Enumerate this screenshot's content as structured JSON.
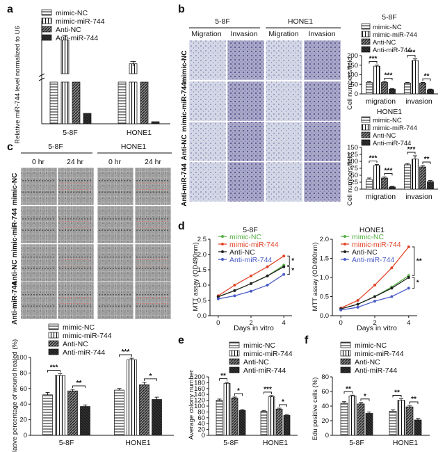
{
  "panel_labels": [
    "a",
    "b",
    "c",
    "d",
    "e",
    "f"
  ],
  "colors": {
    "mimic_nc": "#ffffff",
    "mimic_744": "#ffffff",
    "anti_nc": "#555555",
    "anti_744": "#1a1a1a",
    "line_green": "#55b044",
    "line_red": "#e1452a",
    "line_black": "#222222",
    "line_blue": "#4a5cc7",
    "micro_blue": "#b9c4dc",
    "micro_gray": "#c9c9c9"
  },
  "legend": [
    "mimic-NC",
    "mimic-miR-744",
    "Anti-NC",
    "Anti-miR-744"
  ],
  "legend_e": [
    "mimic-NC",
    "mimic-miR-744",
    "Anti-NC",
    "Anti-miR-744"
  ],
  "panel_b": {
    "groups": [
      "5-8F",
      "HONE1"
    ],
    "cols": [
      "Migration",
      "Invasion",
      "Migration",
      "Invasion"
    ],
    "rows": [
      "mimic-NC",
      "mimic-miR-744",
      "Anti-NC",
      "Anti-miR-744"
    ]
  },
  "panel_c": {
    "groups": [
      "5-8F",
      "HONE1"
    ],
    "cols": [
      "0 hr",
      "24 hr",
      "0 hr",
      "24 hr"
    ],
    "rows": [
      "mimic-NC",
      "mimic-miR-744",
      "Anti-NC",
      "Anti-miR-744"
    ]
  },
  "chart_data": [
    {
      "id": "a",
      "type": "bar",
      "ylabel": "Relative miR-744 level normalized to U6",
      "categories": [
        "5-8F",
        "HONE1"
      ],
      "series": [
        {
          "name": "mimic-NC",
          "values": [
            1.0,
            1.0
          ]
        },
        {
          "name": "mimic-miR-744",
          "values": [
            420,
            265
          ]
        },
        {
          "name": "Anti-NC",
          "values": [
            1.0,
            1.0
          ]
        },
        {
          "name": "Anti-miR-744",
          "values": [
            0.25,
            0.05
          ]
        }
      ],
      "errors": [
        [
          0,
          0
        ],
        [
          30,
          15
        ],
        [
          0,
          0
        ],
        [
          0,
          0
        ]
      ],
      "ylim": "broken"
    },
    {
      "id": "b1",
      "type": "bar",
      "title": "5-8F",
      "ylabel": "Cell numbers/field",
      "categories": [
        "migration",
        "invasion"
      ],
      "ylim": [
        0,
        200
      ],
      "yticks": [
        0,
        50,
        100,
        150,
        200
      ],
      "series": [
        {
          "name": "mimic-NC",
          "values": [
            60,
            57
          ]
        },
        {
          "name": "mimic-miR-744",
          "values": [
            145,
            175
          ]
        },
        {
          "name": "Anti-NC",
          "values": [
            60,
            57
          ]
        },
        {
          "name": "Anti-miR-744",
          "values": [
            25,
            22
          ]
        }
      ],
      "errors": [
        [
          4,
          3
        ],
        [
          6,
          8
        ],
        [
          4,
          3
        ],
        [
          3,
          3
        ]
      ],
      "sig": [
        {
          "cat": 0,
          "pair": [
            0,
            1
          ],
          "text": "***"
        },
        {
          "cat": 0,
          "pair": [
            2,
            3
          ],
          "text": "***"
        },
        {
          "cat": 1,
          "pair": [
            0,
            1
          ],
          "text": "***"
        },
        {
          "cat": 1,
          "pair": [
            2,
            3
          ],
          "text": "**"
        }
      ]
    },
    {
      "id": "b2",
      "type": "bar",
      "title": "HONE1",
      "ylabel": "Cell numbers/field",
      "categories": [
        "migration",
        "invasion"
      ],
      "ylim": [
        0,
        150
      ],
      "yticks": [
        0,
        25,
        50,
        75,
        100,
        125,
        150
      ],
      "series": [
        {
          "name": "mimic-NC",
          "values": [
            35,
            88
          ]
        },
        {
          "name": "mimic-miR-744",
          "values": [
            85,
            108
          ]
        },
        {
          "name": "Anti-NC",
          "values": [
            40,
            80
          ]
        },
        {
          "name": "Anti-miR-744",
          "values": [
            8,
            27
          ]
        }
      ],
      "errors": [
        [
          5,
          4
        ],
        [
          4,
          12
        ],
        [
          4,
          5
        ],
        [
          2,
          4
        ]
      ],
      "sig": [
        {
          "cat": 0,
          "pair": [
            0,
            1
          ],
          "text": "***"
        },
        {
          "cat": 0,
          "pair": [
            2,
            3
          ],
          "text": "***"
        },
        {
          "cat": 1,
          "pair": [
            0,
            1
          ],
          "text": "***"
        },
        {
          "cat": 1,
          "pair": [
            2,
            3
          ],
          "text": "**"
        }
      ]
    },
    {
      "id": "c",
      "type": "bar",
      "ylabel": "Relative percentage of wound healed (%)",
      "categories": [
        "5-8F",
        "HONE1"
      ],
      "ylim": [
        0,
        100
      ],
      "yticks": [
        0,
        20,
        40,
        60,
        80,
        100
      ],
      "series": [
        {
          "name": "mimic-NC",
          "values": [
            52,
            58
          ]
        },
        {
          "name": "mimic-miR-744",
          "values": [
            77,
            97
          ]
        },
        {
          "name": "Anti-NC",
          "values": [
            57,
            65
          ]
        },
        {
          "name": "Anti-miR-744",
          "values": [
            37,
            46
          ]
        }
      ],
      "errors": [
        [
          3,
          2
        ],
        [
          2,
          2
        ],
        [
          2,
          3
        ],
        [
          2,
          3
        ]
      ],
      "sig": [
        {
          "cat": 0,
          "pair": [
            0,
            1
          ],
          "text": "***"
        },
        {
          "cat": 0,
          "pair": [
            2,
            3
          ],
          "text": "**"
        },
        {
          "cat": 1,
          "pair": [
            0,
            1
          ],
          "text": "***"
        },
        {
          "cat": 1,
          "pair": [
            2,
            3
          ],
          "text": "*"
        }
      ]
    },
    {
      "id": "d1",
      "type": "line",
      "title": "5-8F",
      "xlabel": "Days in vitro",
      "ylabel": "MTT assay (OD490nm)",
      "xlim": [
        -0.5,
        4.5
      ],
      "xticks": [
        0,
        2,
        4
      ],
      "ylim": [
        0,
        2.5
      ],
      "yticks": [
        0,
        0.5,
        1.0,
        1.5,
        2.0,
        2.5
      ],
      "x": [
        0,
        1,
        2,
        3,
        4
      ],
      "series": [
        {
          "name": "mimic-NC",
          "color": "#55b044",
          "values": [
            0.62,
            0.82,
            1.05,
            1.3,
            1.65
          ]
        },
        {
          "name": "mimic-miR-744",
          "color": "#e1452a",
          "values": [
            0.65,
            1.0,
            1.3,
            1.6,
            1.95
          ]
        },
        {
          "name": "Anti-NC",
          "color": "#222222",
          "values": [
            0.62,
            0.82,
            1.05,
            1.3,
            1.6
          ]
        },
        {
          "name": "Anti-miR-744",
          "color": "#4a5cc7",
          "values": [
            0.55,
            0.65,
            0.8,
            1.0,
            1.35
          ]
        }
      ],
      "sig": [
        "*",
        "*"
      ]
    },
    {
      "id": "d2",
      "type": "line",
      "title": "HONE1",
      "xlabel": "Days in vitro",
      "ylabel": "MTT assay (OD490nm)",
      "xlim": [
        -0.5,
        4.5
      ],
      "xticks": [
        0,
        2,
        4
      ],
      "ylim": [
        0,
        2.0
      ],
      "yticks": [
        0.0,
        0.5,
        1.0,
        1.5,
        2.0
      ],
      "x": [
        0,
        1,
        2,
        3,
        4
      ],
      "series": [
        {
          "name": "mimic-NC",
          "color": "#55b044",
          "values": [
            0.18,
            0.3,
            0.5,
            0.75,
            1.05
          ]
        },
        {
          "name": "mimic-miR-744",
          "color": "#e1452a",
          "values": [
            0.2,
            0.4,
            0.8,
            1.25,
            1.8
          ]
        },
        {
          "name": "Anti-NC",
          "color": "#222222",
          "values": [
            0.18,
            0.3,
            0.5,
            0.72,
            1.0
          ]
        },
        {
          "name": "Anti-miR-744",
          "color": "#4a5cc7",
          "values": [
            0.15,
            0.22,
            0.38,
            0.5,
            0.72
          ]
        }
      ],
      "sig": [
        "**",
        "*"
      ]
    },
    {
      "id": "e",
      "type": "bar",
      "ylabel": "Average colony number",
      "categories": [
        "5-8F",
        "HONE1"
      ],
      "ylim": [
        0,
        200
      ],
      "yticks": [
        0,
        20,
        40,
        60,
        80,
        100,
        120,
        140,
        160,
        180,
        200
      ],
      "series": [
        {
          "name": "mimic-NC",
          "values": [
            120,
            82
          ]
        },
        {
          "name": "mimic-miR-744",
          "values": [
            178,
            132
          ]
        },
        {
          "name": "Anti-NC",
          "values": [
            128,
            90
          ]
        },
        {
          "name": "Anti-miR-744",
          "values": [
            85,
            68
          ]
        }
      ],
      "errors": [
        [
          4,
          3
        ],
        [
          4,
          4
        ],
        [
          3,
          3
        ],
        [
          3,
          3
        ]
      ],
      "sig": [
        {
          "cat": 0,
          "pair": [
            0,
            1
          ],
          "text": "**"
        },
        {
          "cat": 0,
          "pair": [
            2,
            3
          ],
          "text": "*"
        },
        {
          "cat": 1,
          "pair": [
            0,
            1
          ],
          "text": "***"
        },
        {
          "cat": 1,
          "pair": [
            2,
            3
          ],
          "text": "*"
        }
      ]
    },
    {
      "id": "f",
      "type": "bar",
      "ylabel": "Edu positive cells (%)",
      "categories": [
        "5-8F",
        "HONE1"
      ],
      "ylim": [
        0,
        80
      ],
      "yticks": [
        0,
        20,
        40,
        60,
        80
      ],
      "series": [
        {
          "name": "mimic-NC",
          "values": [
            44,
            33
          ]
        },
        {
          "name": "mimic-miR-744",
          "values": [
            54,
            48
          ]
        },
        {
          "name": "Anti-NC",
          "values": [
            43,
            39
          ]
        },
        {
          "name": "Anti-miR-744",
          "values": [
            30,
            21
          ]
        }
      ],
      "errors": [
        [
          2,
          2
        ],
        [
          1,
          2
        ],
        [
          2,
          2
        ],
        [
          2,
          2
        ]
      ],
      "sig": [
        {
          "cat": 0,
          "pair": [
            0,
            1
          ],
          "text": "**"
        },
        {
          "cat": 0,
          "pair": [
            2,
            3
          ],
          "text": "*"
        },
        {
          "cat": 1,
          "pair": [
            0,
            1
          ],
          "text": "**"
        },
        {
          "cat": 1,
          "pair": [
            2,
            3
          ],
          "text": "**"
        }
      ]
    }
  ]
}
